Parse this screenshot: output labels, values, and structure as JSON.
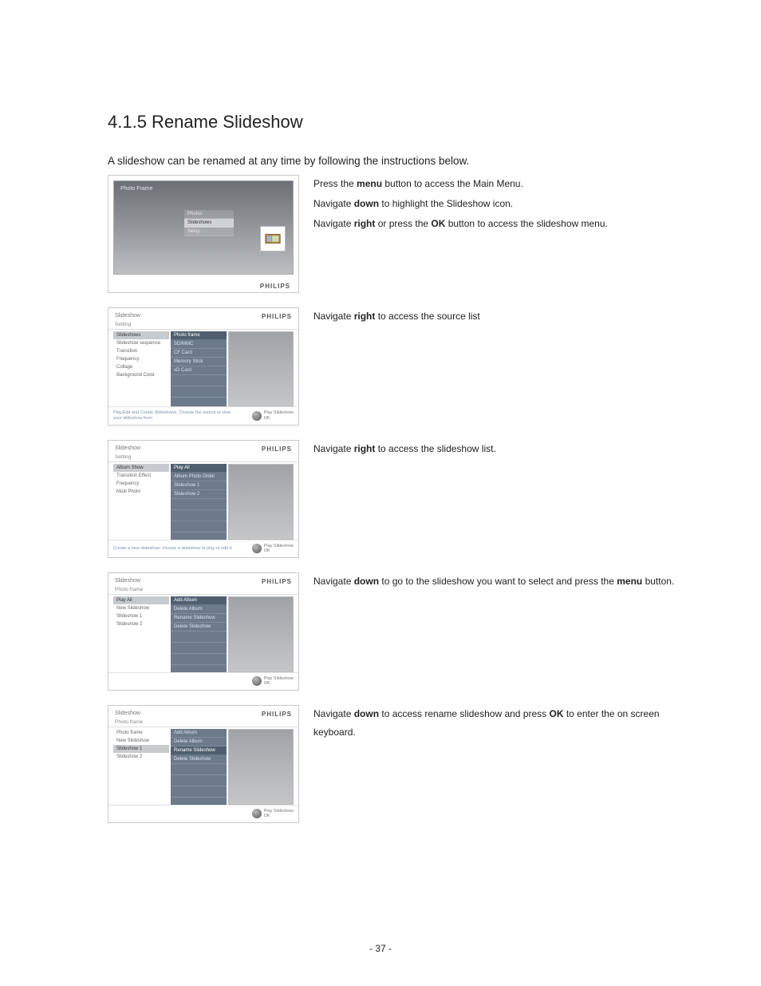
{
  "heading": "4.1.5  Rename Slideshow",
  "intro": "A slideshow can be renamed at any time by following the instructions below.",
  "brand": "PHILIPS",
  "footer_play": "Play Slideshow",
  "footer_ok": "OK",
  "page_number": "- 37 -",
  "step1": {
    "lines": [
      {
        "pre": "Press the ",
        "b": "menu",
        "post": " button to access the Main Menu."
      },
      {
        "pre": "Navigate ",
        "b": "down",
        "post": " to highlight the Slideshow icon."
      },
      {
        "pre": "Navigate ",
        "b": "right",
        "post_pre": " or press the ",
        "b2": "OK",
        "post": " button to access the slideshow menu."
      }
    ],
    "shot": {
      "title": "Photo Frame",
      "menu": [
        "Photos",
        "Slideshows",
        "Setup"
      ],
      "menu_sel_index": 1
    }
  },
  "step2": {
    "text_pre": "Navigate ",
    "text_b": "right",
    "text_post": " to access the source list",
    "shot": {
      "header": "Slideshow",
      "sub": "Setting",
      "col1": [
        "Slideshows",
        "Slideshow sequence",
        "Transition",
        "Frequency",
        "Collage",
        "Background Color"
      ],
      "col1_sel": 0,
      "col2": [
        "Photo frame",
        "SD/MMC",
        "CF Card",
        "Memory Stick",
        "xD Card"
      ],
      "col2_sel": 0,
      "footer": "Play,Edit and Create Slideshows.\nChoose the source to view your slideshow from"
    }
  },
  "step3": {
    "text_pre": "Navigate ",
    "text_b": "right",
    "text_post": " to access the slideshow list.",
    "shot": {
      "header": "Slideshow",
      "sub": "Setting",
      "col1": [
        "Album Show",
        "Transition Effect",
        "Frequency",
        "Multi Photo"
      ],
      "col1_sel": 0,
      "col2": [
        "Play All",
        "Album Photo Order",
        "Slideshow 1",
        "Slideshow 2"
      ],
      "col2_sel": 0,
      "footer": "Create a new slideshow; choose a slideshow to play or edit it."
    }
  },
  "step4": {
    "text_pre": "Navigate ",
    "text_b": "down",
    "text_mid": " to go to the slideshow you want to select and press the ",
    "text_b2": "menu",
    "text_post": " button.",
    "shot": {
      "header": "Slideshow",
      "sub": "Photo frame",
      "col1": [
        "Play All",
        "New Slideshow",
        "Slideshow 1",
        "Slideshow 2"
      ],
      "col1_sel": 0,
      "col2": [
        "Add Album",
        "Delete Album",
        "Rename Slideshow",
        "Delete Slideshow"
      ],
      "col2_sel": 0,
      "footer": ""
    }
  },
  "step5": {
    "text_pre": "Navigate ",
    "text_b": "down",
    "text_mid": " to access rename slideshow and press ",
    "text_b2": "OK",
    "text_post": " to enter the on screen keyboard.",
    "shot": {
      "header": "Slideshow",
      "sub": "Photo frame",
      "col1": [
        "Photo frame",
        "New Slideshow",
        "Slideshow 1",
        "Slideshow 2"
      ],
      "col1_sel": 2,
      "col2": [
        "Add Album",
        "Delete Album",
        "Rename Slideshow",
        "Delete Slideshow"
      ],
      "col2_sel": 2,
      "footer": ""
    }
  }
}
